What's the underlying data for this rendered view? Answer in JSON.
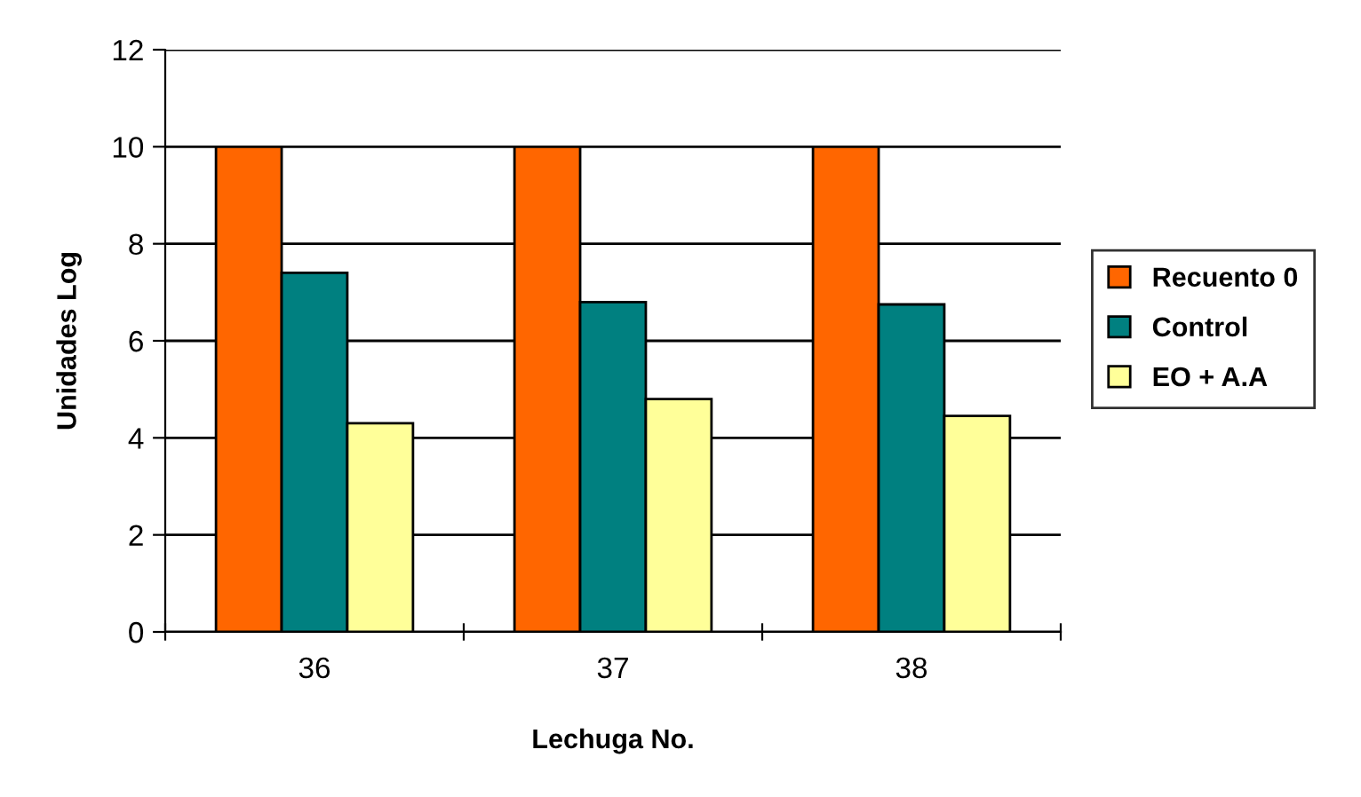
{
  "chart_data": {
    "type": "bar",
    "xlabel": "Lechuga No.",
    "ylabel": "Unidades Log",
    "categories": [
      "36",
      "37",
      "38"
    ],
    "series": [
      {
        "name": "Recuento 0",
        "color": "#ff6600",
        "values": [
          10,
          10,
          10
        ]
      },
      {
        "name": "Control",
        "color": "#008080",
        "values": [
          7.4,
          6.8,
          6.75
        ]
      },
      {
        "name": "EO + A.A",
        "color": "#ffff99",
        "values": [
          4.3,
          4.8,
          4.45
        ]
      }
    ],
    "ylim": [
      0,
      12
    ],
    "yticks": [
      0,
      2,
      4,
      6,
      8,
      10,
      12
    ],
    "grid": "y",
    "legend": "right"
  }
}
